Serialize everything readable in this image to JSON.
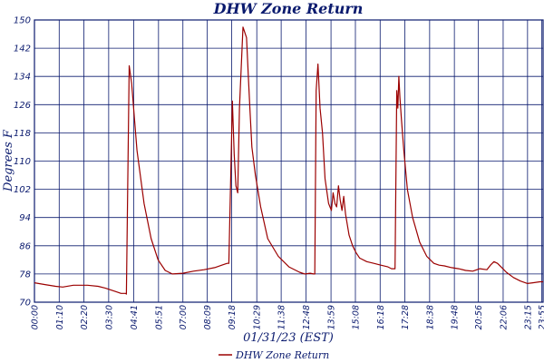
{
  "chart_data": {
    "type": "line",
    "title": "DHW Zone Return",
    "xlabel": "01/31/23 (EST)",
    "ylabel": "Degrees F",
    "ylim": [
      70,
      150
    ],
    "y_ticks": [
      70,
      78,
      86,
      94,
      102,
      110,
      118,
      126,
      134,
      142,
      150
    ],
    "x_unit": "minutes since 00:00",
    "x_range": [
      0,
      1439
    ],
    "x_ticks": [
      {
        "label": "00:00",
        "x": 0
      },
      {
        "label": "01:10",
        "x": 70
      },
      {
        "label": "02:20",
        "x": 140
      },
      {
        "label": "03:30",
        "x": 210
      },
      {
        "label": "04:41",
        "x": 281
      },
      {
        "label": "05:51",
        "x": 351
      },
      {
        "label": "07:00",
        "x": 420
      },
      {
        "label": "08:09",
        "x": 489
      },
      {
        "label": "09:18",
        "x": 558
      },
      {
        "label": "10:29",
        "x": 629
      },
      {
        "label": "11:38",
        "x": 698
      },
      {
        "label": "12:48",
        "x": 768
      },
      {
        "label": "13:59",
        "x": 839
      },
      {
        "label": "15:08",
        "x": 908
      },
      {
        "label": "16:18",
        "x": 978
      },
      {
        "label": "17:28",
        "x": 1048
      },
      {
        "label": "18:38",
        "x": 1118
      },
      {
        "label": "19:48",
        "x": 1188
      },
      {
        "label": "20:56",
        "x": 1256
      },
      {
        "label": "22:06",
        "x": 1326
      },
      {
        "label": "23:15",
        "x": 1395
      },
      {
        "label": "23:55",
        "x": 1435
      }
    ],
    "grid": true,
    "legend_position": "bottom",
    "series": [
      {
        "name": "DHW Zone Return",
        "color": "#9b0000",
        "x": [
          0,
          30,
          60,
          80,
          110,
          150,
          180,
          200,
          230,
          245,
          258,
          260,
          268,
          275,
          290,
          310,
          330,
          350,
          370,
          390,
          420,
          450,
          480,
          510,
          530,
          545,
          550,
          560,
          565,
          570,
          575,
          580,
          590,
          600,
          605,
          610,
          615,
          625,
          640,
          660,
          690,
          720,
          750,
          765,
          780,
          790,
          793,
          797,
          802,
          808,
          815,
          822,
          832,
          840,
          845,
          850,
          855,
          860,
          865,
          870,
          875,
          880,
          890,
          900,
          910,
          920,
          940,
          960,
          980,
          1000,
          1010,
          1020,
          1025,
          1028,
          1031,
          1034,
          1038,
          1045,
          1055,
          1070,
          1090,
          1110,
          1130,
          1145,
          1160,
          1180,
          1200,
          1220,
          1240,
          1260,
          1280,
          1290,
          1300,
          1310,
          1320,
          1335,
          1355,
          1375,
          1395,
          1410,
          1430,
          1439
        ],
        "values": [
          75.5,
          75,
          74.5,
          74.3,
          74.8,
          74.8,
          74.5,
          74,
          73,
          72.5,
          72.5,
          72.3,
          137,
          132,
          113,
          98,
          88,
          82,
          79,
          78,
          78.2,
          78.8,
          79.2,
          79.8,
          80.5,
          81,
          81,
          127,
          112,
          103,
          101,
          125,
          148,
          145,
          134,
          124,
          114,
          106,
          97,
          88,
          83,
          80,
          78.5,
          78,
          78.2,
          78,
          78,
          130,
          137.5,
          125,
          118,
          105,
          98,
          96,
          101,
          98,
          97,
          103,
          99,
          96,
          100,
          95,
          89,
          86,
          84,
          82.5,
          81.5,
          81,
          80.5,
          80,
          79.5,
          79.5,
          130,
          125,
          134,
          128,
          122,
          113,
          102,
          94,
          87,
          83,
          81,
          80.5,
          80.3,
          79.8,
          79.5,
          79,
          78.8,
          79.5,
          79.2,
          80.5,
          81.5,
          81,
          80,
          78.5,
          77,
          76,
          75.3,
          75.5,
          75.8,
          75.8
        ]
      }
    ]
  }
}
